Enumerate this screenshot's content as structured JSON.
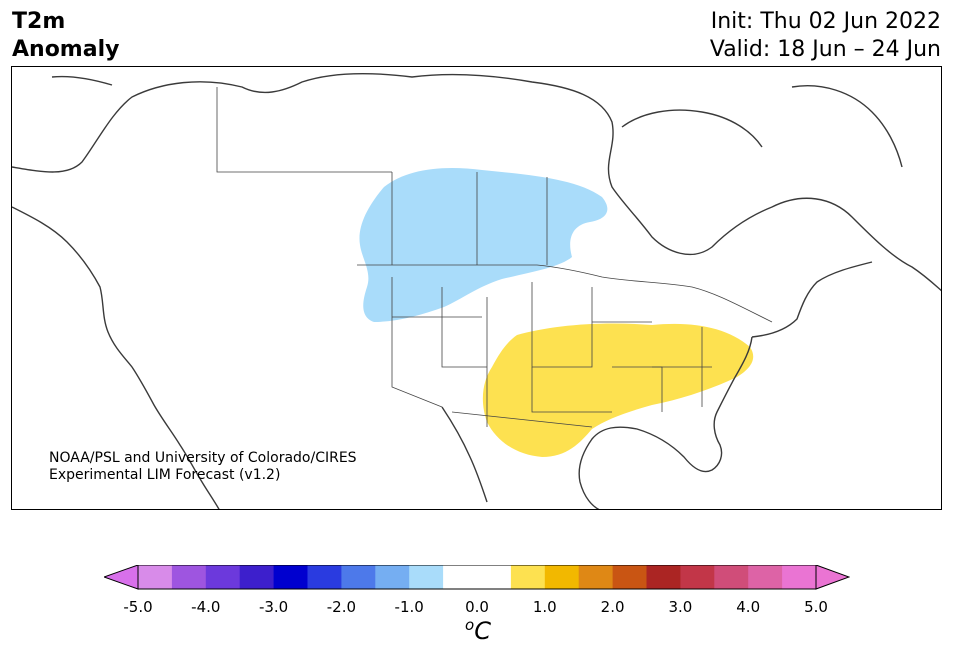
{
  "header": {
    "variable": "T2m",
    "subtitle": "Anomaly",
    "init": "Init: Thu 02 Jun 2022",
    "valid": "Valid: 18 Jun – 24 Jun"
  },
  "credit": {
    "line1": "NOAA/PSL and University of Colorado/CIRES",
    "line2": "Experimental LIM Forecast (v1.2)"
  },
  "map": {
    "region": "North America",
    "anomaly_regions": [
      {
        "label": "cool-anomaly",
        "range": "-1.0 to -0.5",
        "color": "#a9dcfa"
      },
      {
        "label": "warm-anomaly",
        "range": "0.5 to 1.0",
        "color": "#fde150"
      }
    ]
  },
  "colorbar": {
    "unit_base": "C",
    "unit_sup": "o",
    "colors": [
      "#d88be9",
      "#9e55e0",
      "#6c39dc",
      "#3d1fcc",
      "#0000cf",
      "#2a3be0",
      "#4d79ea",
      "#75aef2",
      "#a9dcfa",
      "#ffffff",
      "#ffffff",
      "#fde150",
      "#f2b800",
      "#df8815",
      "#c95513",
      "#ab2523",
      "#c23648",
      "#d04d79",
      "#dd63a6",
      "#ea74d3"
    ],
    "extend_left_color": "#d870eb",
    "extend_right_color": "#ea74d3",
    "ticks": [
      "-5.0",
      "-4.0",
      "-3.0",
      "-2.0",
      "-1.0",
      "0.0",
      "1.0",
      "2.0",
      "3.0",
      "4.0",
      "5.0"
    ]
  }
}
